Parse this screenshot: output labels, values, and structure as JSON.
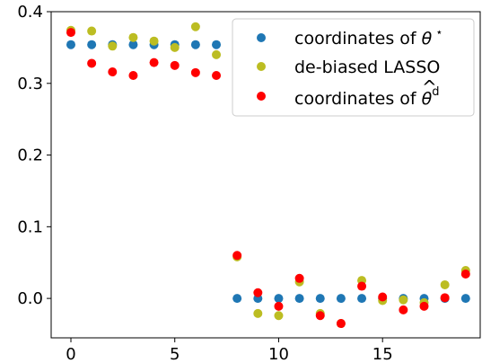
{
  "chart_data": {
    "type": "scatter",
    "title": "",
    "xlabel": "",
    "ylabel": "",
    "xlim": [
      -0.95,
      19.7
    ],
    "ylim": [
      -0.055,
      0.4
    ],
    "x_ticks": [
      0,
      5,
      10,
      15
    ],
    "x_tick_labels": [
      "0",
      "5",
      "10",
      "15"
    ],
    "y_ticks": [
      0.0,
      0.1,
      0.2,
      0.3,
      0.4
    ],
    "y_tick_labels": [
      "0.0",
      "0.1",
      "0.2",
      "0.3",
      "0.4"
    ],
    "grid": false,
    "legend_position": "top-right",
    "series": [
      {
        "name": "coordinates of θ*",
        "color": "#1f77b4",
        "x": [
          0,
          1,
          2,
          3,
          4,
          5,
          6,
          7,
          8,
          9,
          10,
          11,
          12,
          13,
          14,
          15,
          16,
          17,
          18,
          19
        ],
        "y": [
          0.354,
          0.354,
          0.354,
          0.354,
          0.354,
          0.354,
          0.354,
          0.354,
          0,
          0,
          0,
          0,
          0,
          0,
          0,
          0,
          0,
          0,
          0,
          0
        ]
      },
      {
        "name": "de-biased LASSO",
        "color": "#bcbd22",
        "x": [
          0,
          1,
          2,
          3,
          4,
          5,
          6,
          7,
          8,
          9,
          10,
          11,
          12,
          13,
          14,
          15,
          16,
          17,
          18,
          19
        ],
        "y": [
          0.374,
          0.373,
          0.352,
          0.364,
          0.359,
          0.35,
          0.379,
          0.34,
          0.058,
          -0.021,
          -0.024,
          0.023,
          -0.021,
          -0.035,
          0.025,
          -0.003,
          -0.002,
          -0.006,
          0.019,
          0.039
        ]
      },
      {
        "name": "coordinates of θ̂d",
        "color": "#ff0000",
        "x": [
          0,
          1,
          2,
          3,
          4,
          5,
          6,
          7,
          8,
          9,
          10,
          11,
          12,
          13,
          14,
          15,
          16,
          17,
          18,
          19
        ],
        "y": [
          0.371,
          0.328,
          0.316,
          0.311,
          0.329,
          0.325,
          0.315,
          0.311,
          0.06,
          0.008,
          -0.011,
          0.028,
          -0.024,
          -0.035,
          0.017,
          0.002,
          -0.016,
          -0.011,
          0.001,
          0.034
        ]
      }
    ],
    "legend": {
      "entries": [
        {
          "prefix": "coordinates of ",
          "symbol": "θ",
          "sup": "⋆"
        },
        {
          "prefix": "de-biased LASSO",
          "symbol": "",
          "sup": ""
        },
        {
          "prefix": "coordinates of ",
          "symbol": "θ",
          "hat": "^",
          "sup": "d"
        }
      ]
    }
  }
}
